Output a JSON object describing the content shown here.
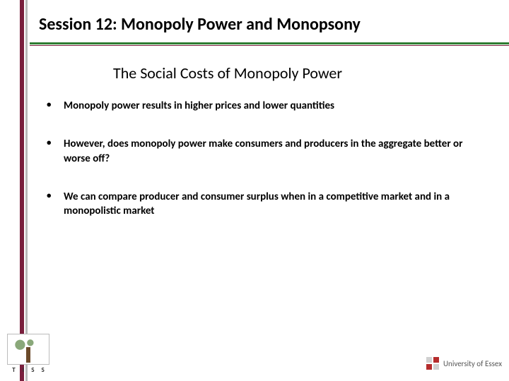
{
  "title": "Session 12: Monopoly Power and Monopsony",
  "subtitle": "The Social Costs of Monopoly Power",
  "bullets": [
    "Monopoly power results in higher prices and lower quantities",
    "However, does monopoly power make consumers and producers in the aggregate better or worse off?",
    "We can compare producer and consumer surplus when in a competitive market and in a monopolistic market"
  ],
  "logos": {
    "left_caption": "T I S S",
    "right_caption": "University of Essex"
  },
  "colors": {
    "rail_maroon": "#7a1f3d",
    "rail_gray": "#b9b9b9",
    "hr_green": "#2e7d32",
    "essex_red": "#b52c2c",
    "essex_gray": "#d0d0d0",
    "background": "#ffffff",
    "text": "#000000"
  }
}
